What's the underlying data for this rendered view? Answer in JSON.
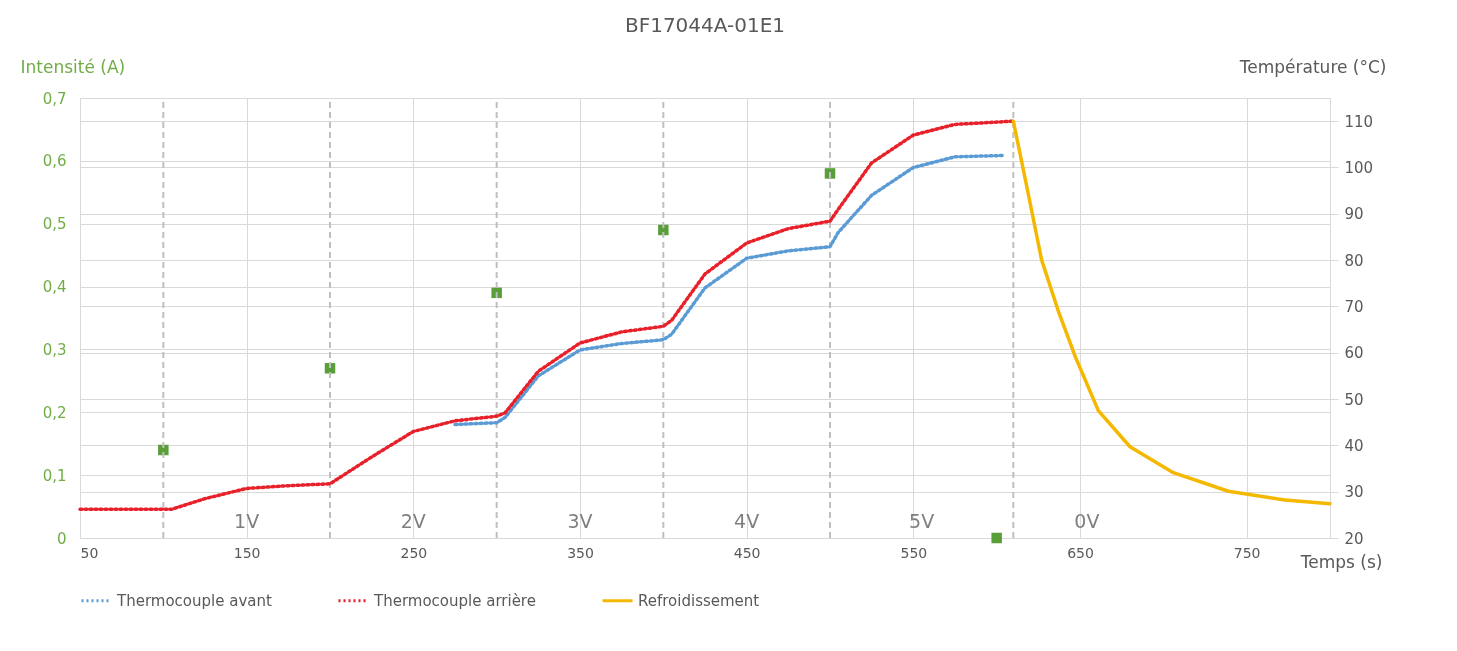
{
  "chart_data": {
    "type": "line",
    "title": "BF17044A-01E1",
    "xlabel": "Temps (s)",
    "ylabel": "Intensité (A)",
    "y2label": "Température (°C)",
    "xlim": [
      50,
      800
    ],
    "xticks": [
      50,
      150,
      250,
      350,
      450,
      550,
      650,
      750
    ],
    "ylim": [
      0,
      0.7
    ],
    "yticks": [
      0,
      {
        "value": 0.1,
        "label": "0,1"
      },
      {
        "value": 0.2,
        "label": "0,2"
      },
      {
        "value": 0.3,
        "label": "0,3"
      },
      {
        "value": 0.4,
        "label": "0,4"
      },
      {
        "value": 0.5,
        "label": "0,5"
      },
      {
        "value": 0.6,
        "label": "0,6"
      },
      {
        "value": 0.7,
        "label": "0,7"
      }
    ],
    "y2lim": [
      20,
      115
    ],
    "y2ticks": [
      20,
      30,
      40,
      50,
      60,
      70,
      80,
      90,
      100,
      110
    ],
    "grid": true,
    "legend": "bottom",
    "ref_lines": [
      {
        "axis": "x",
        "value": 100,
        "color": "#bfbfbf",
        "line_style": "dashed"
      },
      {
        "axis": "x",
        "value": 200,
        "color": "#bfbfbf",
        "line_style": "dashed"
      },
      {
        "axis": "x",
        "value": 300,
        "color": "#bfbfbf",
        "line_style": "dashed"
      },
      {
        "axis": "x",
        "value": 400,
        "color": "#bfbfbf",
        "line_style": "dashed"
      },
      {
        "axis": "x",
        "value": 500,
        "color": "#bfbfbf",
        "line_style": "dashed"
      },
      {
        "axis": "x",
        "value": 610,
        "color": "#bfbfbf",
        "line_style": "dashed"
      }
    ],
    "annotations": [
      "1V",
      "2V",
      "3V",
      "4V",
      "5V",
      "0V"
    ],
    "series": [
      {
        "type": "scatter",
        "axis": "y",
        "color": "#5a9e3a",
        "marker": "square",
        "x": [
          100,
          200,
          300,
          400,
          500,
          600
        ],
        "values": [
          0.14,
          0.27,
          0.39,
          0.49,
          0.58,
          0
        ]
      },
      {
        "name": "Thermocouple avant",
        "axis": "y2",
        "color": "#5b9bd5",
        "line_style": "dotted",
        "x": [
          275,
          300,
          305,
          325,
          350,
          375,
          400,
          405,
          425,
          450,
          475,
          500,
          505,
          525,
          550,
          575,
          605
        ],
        "values": [
          44.5,
          44.9,
          46,
          55,
          60.6,
          62,
          62.8,
          64,
          74,
          80.4,
          82,
          82.9,
          86,
          94,
          100,
          102.3,
          102.6
        ]
      },
      {
        "name": "Thermocouple arrière",
        "axis": "y2",
        "color": "#e8202a",
        "line_style": "dotted",
        "x": [
          50,
          105,
          125,
          150,
          175,
          200,
          225,
          250,
          275,
          300,
          305,
          325,
          350,
          375,
          400,
          405,
          425,
          450,
          475,
          500,
          505,
          525,
          550,
          575,
          610
        ],
        "values": [
          26.2,
          26.2,
          28.5,
          30.7,
          31.3,
          31.7,
          37.5,
          43,
          45.3,
          46.3,
          47,
          56,
          62.1,
          64.5,
          65.7,
          67,
          77,
          83.7,
          86.8,
          88.4,
          91,
          101,
          107,
          109.3,
          110
        ]
      },
      {
        "name": "Refroidissement",
        "axis": "y2",
        "color": "#f5b800",
        "line_style": "solid",
        "x": [
          610,
          618,
          627,
          637,
          647,
          661,
          680,
          706,
          739,
          773,
          800
        ],
        "values": [
          110,
          96,
          80,
          69,
          59.3,
          47.5,
          39.7,
          34.1,
          30.1,
          28.2,
          27.4
        ]
      }
    ]
  }
}
